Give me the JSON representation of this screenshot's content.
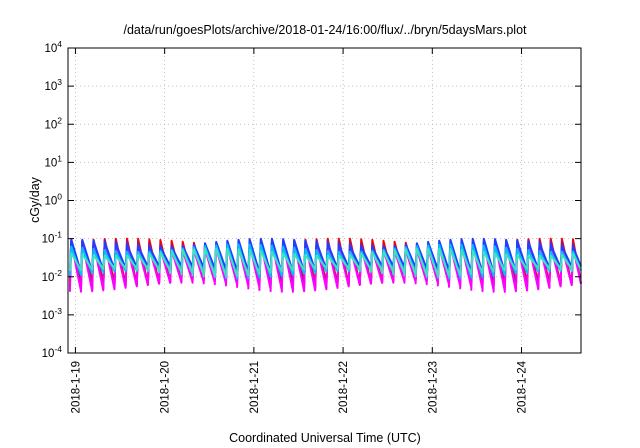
{
  "chart_data": {
    "type": "line",
    "title": "/data/run/goesPlots/archive/2018-01-24/16:00/flux/../bryn/5daysMars.plot",
    "xlabel": "Coordinated Universal Time (UTC)",
    "ylabel": "cGy/day",
    "yscale": "log",
    "ylim": [
      0.0001,
      10000
    ],
    "y_ticks": [
      {
        "base": "10",
        "exp": "-4"
      },
      {
        "base": "10",
        "exp": "-3"
      },
      {
        "base": "10",
        "exp": "-2"
      },
      {
        "base": "10",
        "exp": "-1"
      },
      {
        "base": "10",
        "exp": "0"
      },
      {
        "base": "10",
        "exp": "1"
      },
      {
        "base": "10",
        "exp": "2"
      },
      {
        "base": "10",
        "exp": "3"
      },
      {
        "base": "10",
        "exp": "4"
      }
    ],
    "xlim": [
      "2018-01-18 22:00",
      "2018-01-24 16:00"
    ],
    "x_ticks": [
      "2018-1-19",
      "2018-1-20",
      "2018-1-21",
      "2018-1-22",
      "2018-1-23",
      "2018-1-24"
    ],
    "grid": true,
    "legend": "none",
    "pattern": {
      "description": "sawtooth: sharp rise then decay, repeating",
      "period_hours": 3,
      "start": "2018-01-18 22:30"
    },
    "series": [
      {
        "color": "#ff0000",
        "peak": [
          0.07,
          0.1
        ],
        "trough": [
          0.006,
          0.009
        ]
      },
      {
        "color": "#8b1a8b",
        "peak": [
          0.06,
          0.09
        ],
        "trough": [
          0.005,
          0.008
        ]
      },
      {
        "color": "#ff00ff",
        "peak": [
          0.05,
          0.08
        ],
        "trough": [
          0.004,
          0.007
        ]
      },
      {
        "color": "#1f3fff",
        "peak": [
          0.06,
          0.1
        ],
        "trough": [
          0.012,
          0.018
        ]
      },
      {
        "color": "#00bfff",
        "peak": [
          0.045,
          0.07
        ],
        "trough": [
          0.009,
          0.014
        ]
      },
      {
        "color": "#40e0c0",
        "peak": [
          0.035,
          0.055
        ],
        "trough": [
          0.01,
          0.016
        ]
      }
    ]
  }
}
